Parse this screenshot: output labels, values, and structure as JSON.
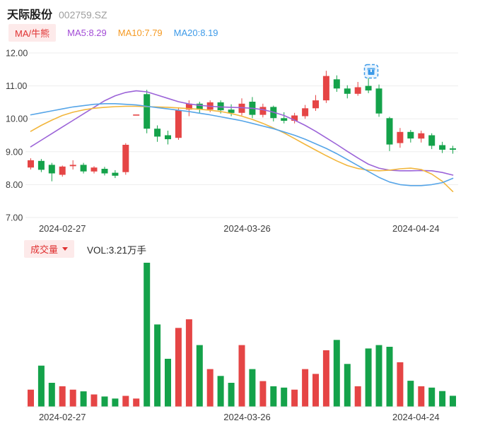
{
  "header": {
    "stock_name": "天际股份",
    "stock_code": "002759.SZ"
  },
  "price_legend": {
    "ma_badge": "MA/牛熊",
    "ma5": "MA5:8.29",
    "ma10": "MA10:7.79",
    "ma20": "MA20:8.19"
  },
  "volume_legend": {
    "badge": "成交量",
    "vol_text": "VOL:3.21万手"
  },
  "colors": {
    "up": "#e54545",
    "down": "#14a24a",
    "grid": "#ededed",
    "axis_text": "#3d3d3d",
    "badge_bg": "#fdeaea",
    "badge_text": "#e03131",
    "ma5_line": "#9c64d8",
    "ma10_line": "#f2b63c",
    "ma20_line": "#56a5e8",
    "ma5_text": "#a24bd6",
    "ma10_text": "#f59a23",
    "ma20_text": "#3d9ae8",
    "marker_blue": "#3d9ae8"
  },
  "chart_data": {
    "type": "candlestick+volume",
    "title": "天际股份 002759.SZ 日K线",
    "xlabel": "",
    "ylabel": "",
    "ylim": [
      7.0,
      12.0
    ],
    "grid": true,
    "y_ticks": [
      "12.00",
      "11.00",
      "10.00",
      "9.00",
      "8.00",
      "7.00"
    ],
    "x_tick_labels": [
      "2024-02-27",
      "2024-03-26",
      "2024-04-24"
    ],
    "x_tick_positions": [
      3,
      20.5,
      36.5
    ],
    "volume_unit": "万手",
    "latest_volume": 3.21,
    "candles": [
      {
        "o": 8.52,
        "h": 8.8,
        "l": 8.46,
        "c": 8.74,
        "v": 5.0
      },
      {
        "o": 8.72,
        "h": 8.78,
        "l": 8.38,
        "c": 8.45,
        "v": 12.0
      },
      {
        "o": 8.6,
        "h": 8.66,
        "l": 8.1,
        "c": 8.34,
        "v": 7.0
      },
      {
        "o": 8.3,
        "h": 8.58,
        "l": 8.24,
        "c": 8.55,
        "v": 6.0
      },
      {
        "o": 8.56,
        "h": 8.74,
        "l": 8.46,
        "c": 8.6,
        "v": 5.0
      },
      {
        "o": 8.6,
        "h": 8.66,
        "l": 8.34,
        "c": 8.4,
        "v": 4.5
      },
      {
        "o": 8.4,
        "h": 8.56,
        "l": 8.34,
        "c": 8.52,
        "v": 3.6
      },
      {
        "o": 8.48,
        "h": 8.54,
        "l": 8.28,
        "c": 8.34,
        "v": 3.0
      },
      {
        "o": 8.36,
        "h": 8.44,
        "l": 8.2,
        "c": 8.27,
        "v": 2.4
      },
      {
        "o": 8.38,
        "h": 9.26,
        "l": 8.3,
        "c": 9.21,
        "v": 3.2
      },
      {
        "o": 10.13,
        "h": 10.13,
        "l": 10.13,
        "c": 10.13,
        "v": 2.4
      },
      {
        "o": 10.75,
        "h": 10.88,
        "l": 9.56,
        "c": 9.7,
        "v": 42.0
      },
      {
        "o": 9.7,
        "h": 9.8,
        "l": 9.3,
        "c": 9.46,
        "v": 24.0
      },
      {
        "o": 9.5,
        "h": 9.64,
        "l": 9.22,
        "c": 9.38,
        "v": 14.0
      },
      {
        "o": 9.42,
        "h": 10.35,
        "l": 9.36,
        "c": 10.26,
        "v": 23.0
      },
      {
        "o": 10.28,
        "h": 10.56,
        "l": 10.08,
        "c": 10.46,
        "v": 25.5
      },
      {
        "o": 10.46,
        "h": 10.52,
        "l": 10.18,
        "c": 10.28,
        "v": 18.0
      },
      {
        "o": 10.28,
        "h": 10.56,
        "l": 10.2,
        "c": 10.5,
        "v": 11.0
      },
      {
        "o": 10.5,
        "h": 10.56,
        "l": 10.16,
        "c": 10.26,
        "v": 9.0
      },
      {
        "o": 10.28,
        "h": 10.44,
        "l": 10.08,
        "c": 10.18,
        "v": 7.0
      },
      {
        "o": 10.18,
        "h": 10.62,
        "l": 10.1,
        "c": 10.46,
        "v": 18.0
      },
      {
        "o": 10.52,
        "h": 10.66,
        "l": 10.02,
        "c": 10.12,
        "v": 11.0
      },
      {
        "o": 10.12,
        "h": 10.46,
        "l": 10.04,
        "c": 10.36,
        "v": 7.5
      },
      {
        "o": 10.36,
        "h": 10.4,
        "l": 9.92,
        "c": 10.02,
        "v": 6.0
      },
      {
        "o": 10.02,
        "h": 10.2,
        "l": 9.86,
        "c": 9.94,
        "v": 5.6
      },
      {
        "o": 9.94,
        "h": 10.18,
        "l": 9.86,
        "c": 10.1,
        "v": 5.0
      },
      {
        "o": 10.08,
        "h": 10.42,
        "l": 10.0,
        "c": 10.32,
        "v": 11.0
      },
      {
        "o": 10.32,
        "h": 10.72,
        "l": 10.24,
        "c": 10.56,
        "v": 9.6
      },
      {
        "o": 10.56,
        "h": 11.46,
        "l": 10.48,
        "c": 11.3,
        "v": 16.5
      },
      {
        "o": 11.2,
        "h": 11.32,
        "l": 10.82,
        "c": 10.92,
        "v": 19.5
      },
      {
        "o": 10.92,
        "h": 11.02,
        "l": 10.62,
        "c": 10.76,
        "v": 12.5
      },
      {
        "o": 10.76,
        "h": 11.12,
        "l": 10.7,
        "c": 10.96,
        "v": 6.0
      },
      {
        "o": 11.0,
        "h": 11.36,
        "l": 10.78,
        "c": 10.86,
        "v": 17.0
      },
      {
        "o": 10.92,
        "h": 11.04,
        "l": 10.06,
        "c": 10.16,
        "v": 18.0
      },
      {
        "o": 10.02,
        "h": 10.06,
        "l": 9.02,
        "c": 9.22,
        "v": 17.5
      },
      {
        "o": 9.26,
        "h": 9.72,
        "l": 9.12,
        "c": 9.6,
        "v": 13.0
      },
      {
        "o": 9.6,
        "h": 9.66,
        "l": 9.28,
        "c": 9.4,
        "v": 7.6
      },
      {
        "o": 9.4,
        "h": 9.64,
        "l": 9.28,
        "c": 9.56,
        "v": 6.0
      },
      {
        "o": 9.5,
        "h": 9.56,
        "l": 9.08,
        "c": 9.18,
        "v": 5.6
      },
      {
        "o": 9.2,
        "h": 9.3,
        "l": 8.96,
        "c": 9.06,
        "v": 4.6
      },
      {
        "o": 9.1,
        "h": 9.18,
        "l": 8.94,
        "c": 9.06,
        "v": 3.21
      }
    ],
    "ma_series": [
      {
        "name": "MA5",
        "color_key": "ma5_line",
        "values": [
          9.15,
          9.35,
          9.55,
          9.75,
          9.95,
          10.15,
          10.35,
          10.55,
          10.7,
          10.8,
          10.85,
          10.82,
          10.72,
          10.62,
          10.52,
          10.45,
          10.41,
          10.38,
          10.36,
          10.35,
          10.34,
          10.32,
          10.28,
          10.2,
          10.1,
          9.96,
          9.8,
          9.62,
          9.42,
          9.22,
          9.01,
          8.81,
          8.62,
          8.5,
          8.44,
          8.42,
          8.42,
          8.43,
          8.42,
          8.37,
          8.29
        ]
      },
      {
        "name": "MA10",
        "color_key": "ma10_line",
        "values": [
          9.62,
          9.8,
          9.96,
          10.1,
          10.2,
          10.27,
          10.32,
          10.35,
          10.37,
          10.38,
          10.38,
          10.37,
          10.36,
          10.35,
          10.33,
          10.31,
          10.29,
          10.26,
          10.22,
          10.16,
          10.08,
          9.98,
          9.86,
          9.72,
          9.57,
          9.4,
          9.22,
          9.05,
          8.88,
          8.72,
          8.58,
          8.49,
          8.44,
          8.42,
          8.44,
          8.48,
          8.5,
          8.46,
          8.32,
          8.1,
          7.79
        ]
      },
      {
        "name": "MA20",
        "color_key": "ma20_line",
        "values": [
          10.12,
          10.18,
          10.24,
          10.3,
          10.36,
          10.4,
          10.44,
          10.46,
          10.46,
          10.44,
          10.42,
          10.38,
          10.34,
          10.3,
          10.26,
          10.22,
          10.17,
          10.12,
          10.06,
          10.0,
          9.94,
          9.86,
          9.78,
          9.7,
          9.6,
          9.5,
          9.38,
          9.24,
          9.1,
          8.94,
          8.76,
          8.58,
          8.4,
          8.22,
          8.08,
          8.0,
          7.97,
          7.97,
          8.0,
          8.06,
          8.19
        ]
      }
    ]
  }
}
